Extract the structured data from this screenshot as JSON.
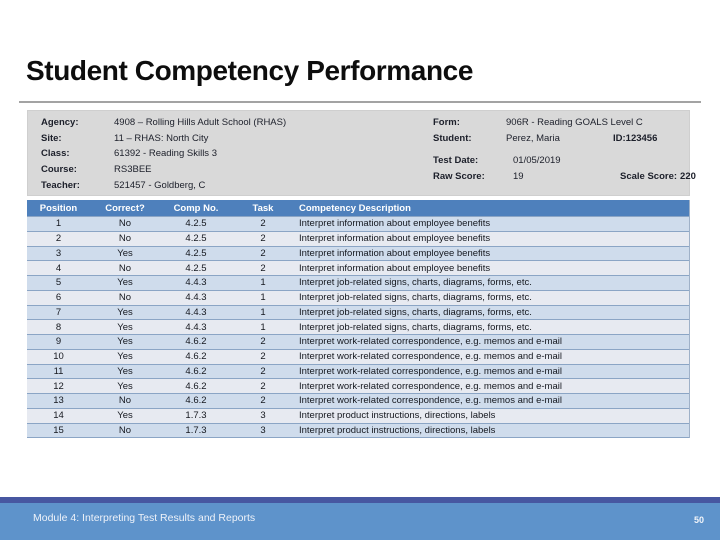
{
  "slide": {
    "title": "Student Competency Performance",
    "footer_text": "Module 4: Interpreting Test Results and Reports",
    "page_number": "50"
  },
  "info": {
    "left": [
      {
        "label": "Agency:",
        "value": "4908 – Rolling Hills Adult School (RHAS)"
      },
      {
        "label": "Site:",
        "value": "11 – RHAS: North City"
      },
      {
        "label": "Class:",
        "value": "61392 - Reading Skills 3"
      },
      {
        "label": "Course:",
        "value": "RS3BEE"
      },
      {
        "label": "Teacher:",
        "value": "521457 - Goldberg, C"
      }
    ],
    "right": {
      "form_label": "Form:",
      "form_value": "906R - Reading GOALS Level C",
      "student_label": "Student:",
      "student_value": "Perez, Maria",
      "id_label": "ID:",
      "id_value": "123456",
      "test_date_label": "Test Date:",
      "test_date_value": "01/05/2019",
      "raw_score_label": "Raw Score:",
      "raw_score_value": "19",
      "scale_score_label": "Scale Score:",
      "scale_score_value": "220"
    }
  },
  "table": {
    "headers": [
      "Position",
      "Correct?",
      "Comp No.",
      "Task",
      "Competency Description"
    ],
    "rows": [
      [
        "1",
        "No",
        "4.2.5",
        "2",
        "Interpret information about employee benefits"
      ],
      [
        "2",
        "No",
        "4.2.5",
        "2",
        "Interpret information about employee benefits"
      ],
      [
        "3",
        "Yes",
        "4.2.5",
        "2",
        "Interpret information about employee benefits"
      ],
      [
        "4",
        "No",
        "4.2.5",
        "2",
        "Interpret information about employee benefits"
      ],
      [
        "5",
        "Yes",
        "4.4.3",
        "1",
        "Interpret job-related signs, charts, diagrams, forms, etc."
      ],
      [
        "6",
        "No",
        "4.4.3",
        "1",
        "Interpret job-related signs, charts, diagrams, forms, etc."
      ],
      [
        "7",
        "Yes",
        "4.4.3",
        "1",
        "Interpret job-related signs, charts, diagrams, forms, etc."
      ],
      [
        "8",
        "Yes",
        "4.4.3",
        "1",
        "Interpret job-related signs, charts, diagrams, forms, etc."
      ],
      [
        "9",
        "Yes",
        "4.6.2",
        "2",
        "Interpret work-related correspondence, e.g. memos and e-mail"
      ],
      [
        "10",
        "Yes",
        "4.6.2",
        "2",
        "Interpret work-related correspondence, e.g. memos and e-mail"
      ],
      [
        "11",
        "Yes",
        "4.6.2",
        "2",
        "Interpret work-related correspondence, e.g. memos and e-mail"
      ],
      [
        "12",
        "Yes",
        "4.6.2",
        "2",
        "Interpret work-related correspondence, e.g. memos and e-mail"
      ],
      [
        "13",
        "No",
        "4.6.2",
        "2",
        "Interpret work-related correspondence, e.g. memos and e-mail"
      ],
      [
        "14",
        "Yes",
        "1.7.3",
        "3",
        "Interpret product instructions, directions, labels"
      ],
      [
        "15",
        "No",
        "1.7.3",
        "3",
        "Interpret product instructions, directions, labels"
      ]
    ]
  },
  "colors": {
    "table_header_bg": "#4e80bc",
    "row_band_blue": "#cfdcec",
    "row_band_gray": "#e7eaf1",
    "row_border": "#8ba5c5",
    "info_panel_bg": "#d9d9d9",
    "footer_stripe": "#4757a1",
    "footer_bar": "#5e93cb",
    "title_color": "#0d0d0d"
  }
}
